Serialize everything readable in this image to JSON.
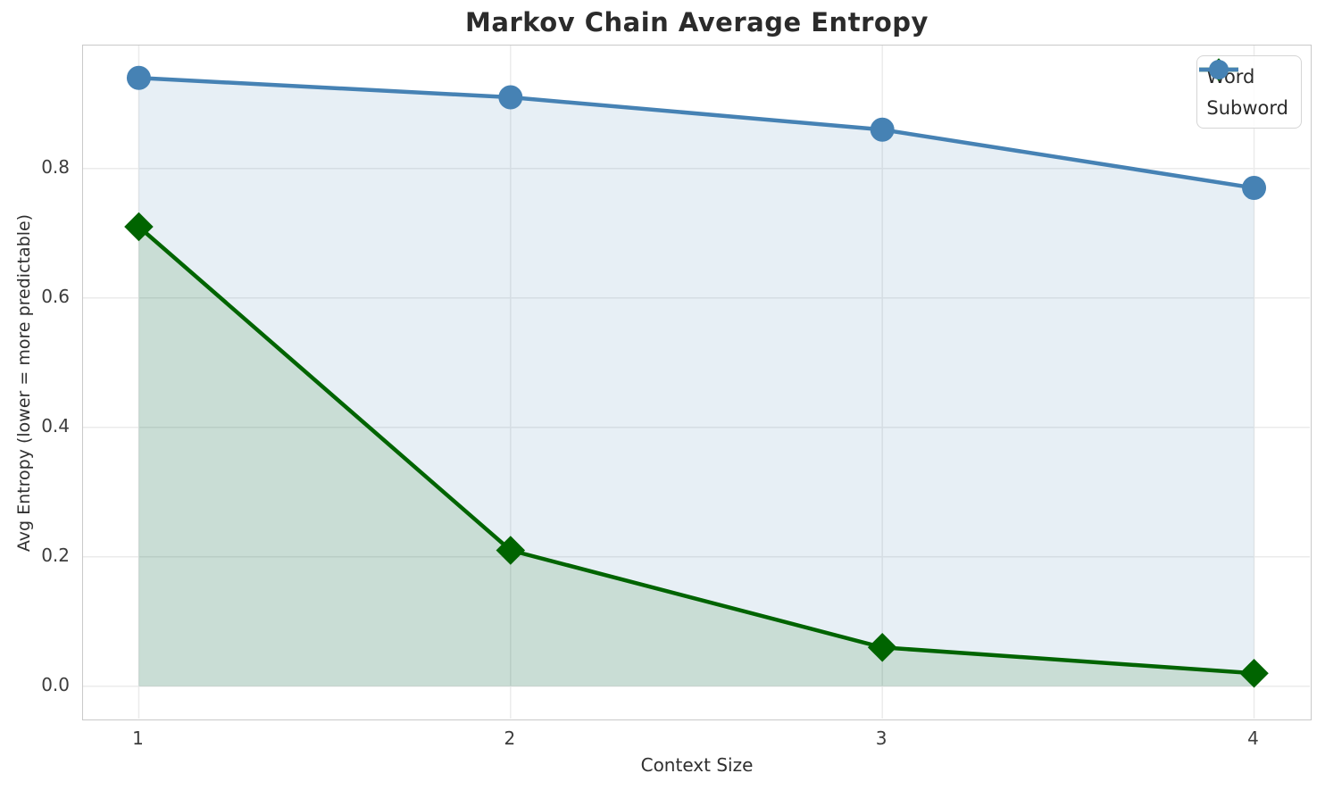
{
  "chart_data": {
    "type": "line",
    "title": "Markov Chain Average Entropy",
    "xlabel": "Context Size",
    "ylabel": "Avg Entropy (lower = more predictable)",
    "x": [
      1,
      2,
      3,
      4
    ],
    "series": [
      {
        "name": "Word",
        "values": [
          0.71,
          0.21,
          0.06,
          0.02
        ],
        "color": "#006400",
        "fill_color": "rgba(0,100,0,0.13)",
        "marker": "diamond",
        "marker_icon": "diamond-marker-icon",
        "line_width": 4.5
      },
      {
        "name": "Subword",
        "values": [
          0.94,
          0.91,
          0.86,
          0.77
        ],
        "color": "#4682B4",
        "fill_color": "rgba(70,130,180,0.13)",
        "marker": "circle",
        "marker_icon": "circle-marker-icon",
        "line_width": 4.5
      }
    ],
    "xticks": {
      "values": [
        1,
        2,
        3,
        4
      ],
      "labels": [
        "1",
        "2",
        "3",
        "4"
      ]
    },
    "yticks": {
      "values": [
        0.0,
        0.2,
        0.4,
        0.6,
        0.8
      ],
      "labels": [
        "0.0",
        "0.2",
        "0.4",
        "0.6",
        "0.8"
      ]
    },
    "xlim": [
      0.85,
      4.15
    ],
    "ylim": [
      -0.05,
      0.99
    ],
    "grid": true,
    "area_fill_to": 0,
    "legend": {
      "position": "upper right",
      "entries": [
        "Word",
        "Subword"
      ]
    }
  }
}
